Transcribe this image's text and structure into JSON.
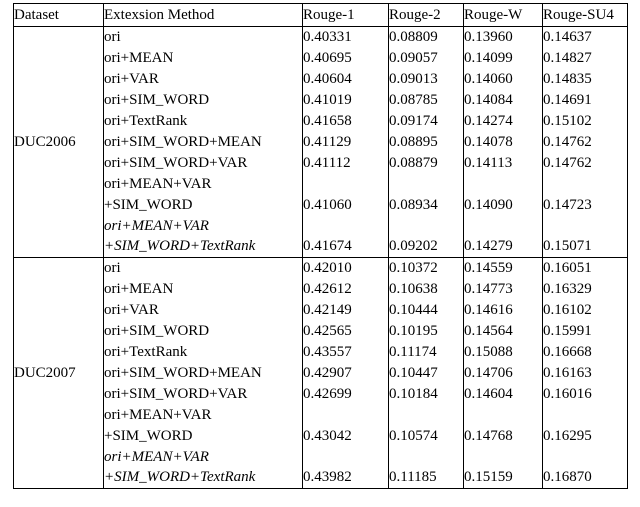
{
  "table": {
    "headers": [
      "Dataset",
      "Extexsion Method",
      "Rouge-1",
      "Rouge-2",
      "Rouge-W",
      "Rouge-SU4"
    ],
    "sections": [
      {
        "dataset": "DUC2006",
        "rows": [
          {
            "method": "ori",
            "style": "normal",
            "values": [
              "0.40331",
              "0.08809",
              "0.13960",
              "0.14637"
            ],
            "bold": [
              false,
              false,
              false,
              false
            ]
          },
          {
            "method": "ori+MEAN",
            "style": "normal",
            "values": [
              "0.40695",
              "0.09057",
              "0.14099",
              "0.14827"
            ],
            "bold": [
              false,
              false,
              false,
              false
            ]
          },
          {
            "method": "ori+VAR",
            "style": "normal",
            "values": [
              "0.40604",
              "0.09013",
              "0.14060",
              "0.14835"
            ],
            "bold": [
              false,
              false,
              false,
              false
            ]
          },
          {
            "method": "ori+SIM_WORD",
            "style": "normal",
            "values": [
              "0.41019",
              "0.08785",
              "0.14084",
              "0.14691"
            ],
            "bold": [
              false,
              false,
              false,
              false
            ]
          },
          {
            "method": "ori+TextRank",
            "style": "normal",
            "values": [
              "0.41658",
              "0.09174",
              "0.14274",
              "0.15102"
            ],
            "bold": [
              false,
              false,
              false,
              true
            ]
          },
          {
            "method": "ori+SIM_WORD+MEAN",
            "style": "normal",
            "values": [
              "0.41129",
              "0.08895",
              "0.14078",
              "0.14762"
            ],
            "bold": [
              false,
              false,
              false,
              false
            ]
          },
          {
            "method": "ori+SIM_WORD+VAR",
            "style": "normal",
            "values": [
              "0.41112",
              "0.08879",
              "0.14113",
              "0.14762"
            ],
            "bold": [
              false,
              false,
              false,
              false
            ]
          },
          {
            "method": "ori+MEAN+VAR",
            "style": "normal",
            "values": [
              "",
              "",
              "",
              ""
            ],
            "bold": [
              false,
              false,
              false,
              false
            ]
          },
          {
            "method": "+SIM_WORD",
            "style": "normal",
            "values": [
              "0.41060",
              "0.08934",
              "0.14090",
              "0.14723"
            ],
            "bold": [
              false,
              false,
              false,
              false
            ]
          },
          {
            "method": "ori+MEAN+VAR",
            "style": "bolditalic",
            "values": [
              "",
              "",
              "",
              ""
            ],
            "bold": [
              false,
              false,
              false,
              false
            ]
          },
          {
            "method": "+SIM_WORD+TextRank",
            "style": "bolditalic",
            "values": [
              "0.41674",
              "0.09202",
              "0.14279",
              "0.15071"
            ],
            "bold": [
              true,
              true,
              true,
              true
            ]
          }
        ]
      },
      {
        "dataset": "DUC2007",
        "rows": [
          {
            "method": "ori",
            "style": "normal",
            "values": [
              "0.42010",
              "0.10372",
              "0.14559",
              "0.16051"
            ],
            "bold": [
              false,
              false,
              false,
              false
            ]
          },
          {
            "method": "ori+MEAN",
            "style": "normal",
            "values": [
              "0.42612",
              "0.10638",
              "0.14773",
              "0.16329"
            ],
            "bold": [
              false,
              false,
              false,
              false
            ]
          },
          {
            "method": "ori+VAR",
            "style": "normal",
            "values": [
              "0.42149",
              "0.10444",
              "0.14616",
              "0.16102"
            ],
            "bold": [
              false,
              false,
              false,
              false
            ]
          },
          {
            "method": "ori+SIM_WORD",
            "style": "normal",
            "values": [
              "0.42565",
              "0.10195",
              "0.14564",
              "0.15991"
            ],
            "bold": [
              false,
              false,
              false,
              false
            ]
          },
          {
            "method": "ori+TextRank",
            "style": "normal",
            "values": [
              "0.43557",
              "0.11174",
              "0.15088",
              "0.16668"
            ],
            "bold": [
              false,
              false,
              false,
              false
            ]
          },
          {
            "method": "ori+SIM_WORD+MEAN",
            "style": "normal",
            "values": [
              "0.42907",
              "0.10447",
              "0.14706",
              "0.16163"
            ],
            "bold": [
              false,
              false,
              false,
              false
            ]
          },
          {
            "method": "ori+SIM_WORD+VAR",
            "style": "normal",
            "values": [
              "0.42699",
              "0.10184",
              "0.14604",
              "0.16016"
            ],
            "bold": [
              false,
              false,
              false,
              false
            ]
          },
          {
            "method": "ori+MEAN+VAR",
            "style": "normal",
            "values": [
              "",
              "",
              "",
              ""
            ],
            "bold": [
              false,
              false,
              false,
              false
            ]
          },
          {
            "method": "+SIM_WORD",
            "style": "normal",
            "values": [
              "0.43042",
              "0.10574",
              "0.14768",
              "0.16295"
            ],
            "bold": [
              false,
              false,
              false,
              false
            ]
          },
          {
            "method": "ori+MEAN+VAR",
            "style": "bolditalic",
            "values": [
              "",
              "",
              "",
              ""
            ],
            "bold": [
              false,
              false,
              false,
              false
            ]
          },
          {
            "method": "+SIM_WORD+TextRank",
            "style": "bolditalic",
            "values": [
              "0.43982",
              "0.11185",
              "0.15159",
              "0.16870"
            ],
            "bold": [
              true,
              true,
              true,
              true
            ]
          }
        ]
      }
    ]
  }
}
